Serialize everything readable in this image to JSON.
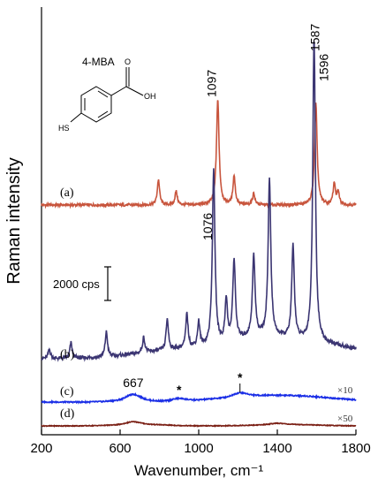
{
  "chart_data": {
    "type": "line",
    "xlabel": "Wavenumber, cm⁻¹",
    "ylabel": "Raman intensity",
    "xlim": [
      200,
      1800
    ],
    "x_ticks": [
      "200",
      "600",
      "1000",
      "1400",
      "1800"
    ],
    "x_tick_values": [
      200,
      600,
      1000,
      1400,
      1800
    ],
    "y_ticks_shown": false,
    "grid": false,
    "scale_bar": {
      "label": "2000 cps",
      "value": 2000
    },
    "molecule": {
      "name": "4-MBA",
      "sh": "HS",
      "o": "O",
      "oh": "OH"
    },
    "peak_labels": [
      {
        "text": "1097",
        "x": 1097,
        "series": "a"
      },
      {
        "text": "1587",
        "x": 1587,
        "series": "b"
      },
      {
        "text": "1596",
        "x": 1596,
        "series": "a"
      },
      {
        "text": "1076",
        "x": 1076,
        "series": "b"
      },
      {
        "text": "667",
        "x": 667,
        "series": "c"
      }
    ],
    "star_labels": [
      {
        "text": "*",
        "x": 900,
        "series": "c"
      },
      {
        "text": "*",
        "x": 1210,
        "series": "c"
      }
    ],
    "series": [
      {
        "id": "a",
        "name": "(a)",
        "multiplier": "",
        "color": "#c8553d",
        "peaks": [
          [
            795,
            650
          ],
          [
            885,
            350
          ],
          [
            1097,
            2700
          ],
          [
            1180,
            750
          ],
          [
            1280,
            300
          ],
          [
            1596,
            2600
          ],
          [
            1690,
            550
          ],
          [
            1710,
            300
          ]
        ]
      },
      {
        "id": "b",
        "name": "(b)",
        "multiplier": "",
        "color": "#3b3572",
        "peaks": [
          [
            240,
            150
          ],
          [
            350,
            250
          ],
          [
            530,
            400
          ],
          [
            720,
            250
          ],
          [
            840,
            500
          ],
          [
            940,
            550
          ],
          [
            1000,
            400
          ],
          [
            1076,
            2800
          ],
          [
            1140,
            700
          ],
          [
            1180,
            1300
          ],
          [
            1280,
            1300
          ],
          [
            1360,
            2550
          ],
          [
            1480,
            1500
          ],
          [
            1587,
            4900
          ]
        ]
      },
      {
        "id": "c",
        "name": "(c)",
        "multiplier": "×10",
        "color": "#1a2ee6",
        "peaks": [
          [
            667,
            150
          ],
          [
            900,
            70
          ],
          [
            1210,
            100
          ]
        ]
      },
      {
        "id": "d",
        "name": "(d)",
        "multiplier": "×50",
        "color": "#7a1f14",
        "peaks": [
          [
            667,
            100
          ],
          [
            1400,
            50
          ]
        ]
      }
    ]
  }
}
